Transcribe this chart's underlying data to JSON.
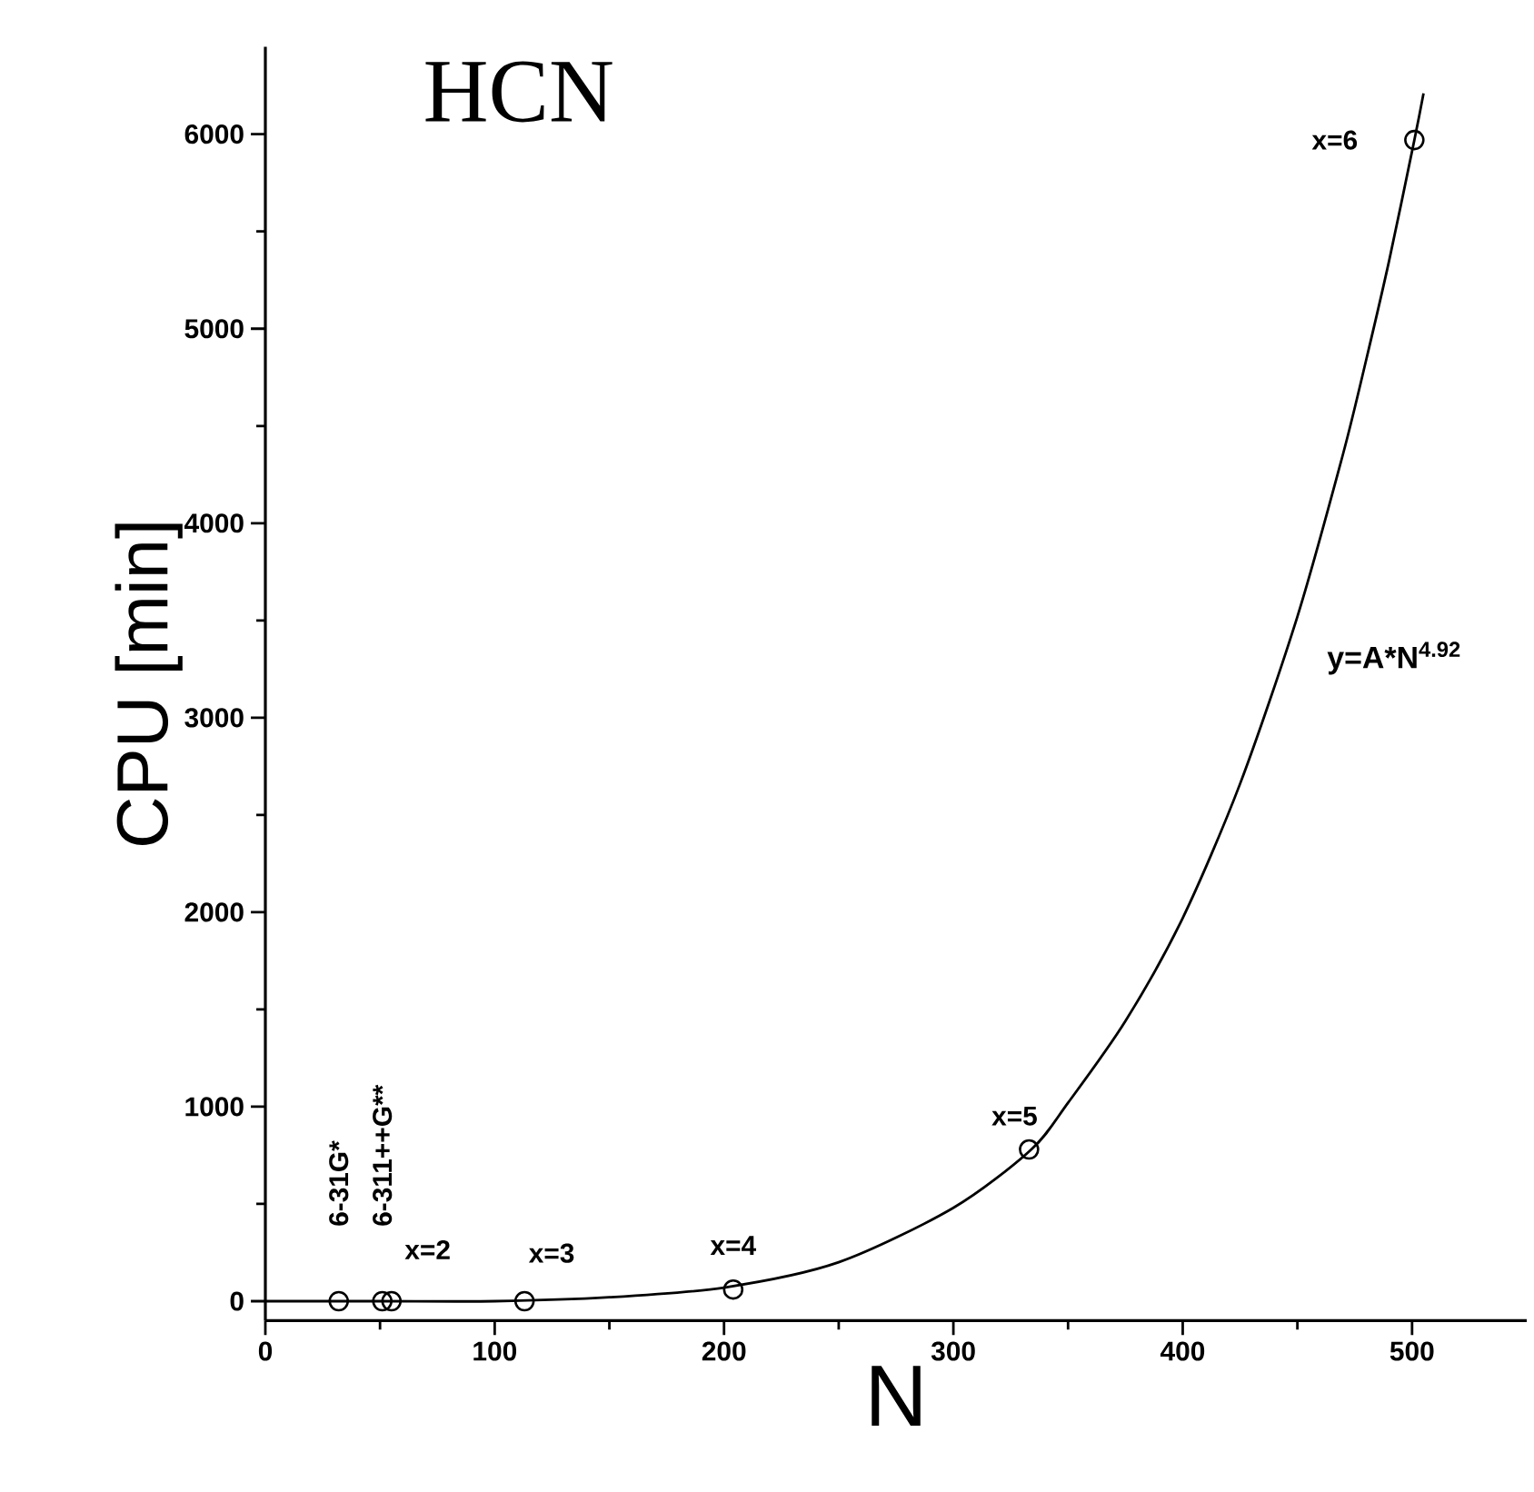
{
  "chart_data": {
    "type": "scatter",
    "title": "HCN",
    "xlabel": "N",
    "ylabel": "CPU  [min]",
    "xlim": [
      0,
      550
    ],
    "ylim": [
      -100,
      6450
    ],
    "xticks": [
      0,
      100,
      200,
      300,
      400,
      500
    ],
    "yticks": [
      0,
      1000,
      2000,
      3000,
      4000,
      5000,
      6000
    ],
    "grid": false,
    "series": [
      {
        "color": "#000000",
        "marker": "circle",
        "x": [
          32,
          51,
          55,
          113,
          204,
          333,
          501
        ],
        "values": [
          0,
          0,
          0,
          0,
          60,
          780,
          5970
        ]
      },
      {
        "type": "line",
        "color": "#000000",
        "marker": "none",
        "line_style": "solid",
        "x": [
          0,
          50,
          100,
          150,
          200,
          250,
          300,
          334,
          350,
          375,
          400,
          425,
          450,
          470,
          480,
          490,
          501,
          505
        ],
        "values": [
          0,
          0,
          0,
          20,
          70,
          200,
          480,
          780,
          1020,
          1440,
          1970,
          2660,
          3520,
          4360,
          4840,
          5350,
          5970,
          6210
        ]
      }
    ],
    "annotations": [
      {
        "text": "6-31G*",
        "x": 32,
        "y": 0
      },
      {
        "text": "6-311++G**",
        "x": 51,
        "y": 0
      },
      {
        "text": "x=2",
        "x": 55,
        "y": 0
      },
      {
        "text": "x=3",
        "x": 113,
        "y": 0
      },
      {
        "text": "x=4",
        "x": 204,
        "y": 60
      },
      {
        "text": "x=5",
        "x": 333,
        "y": 780
      },
      {
        "text": "x=6",
        "x": 501,
        "y": 5970
      },
      "**y=A*N$^{4.92}$**"
    ]
  }
}
